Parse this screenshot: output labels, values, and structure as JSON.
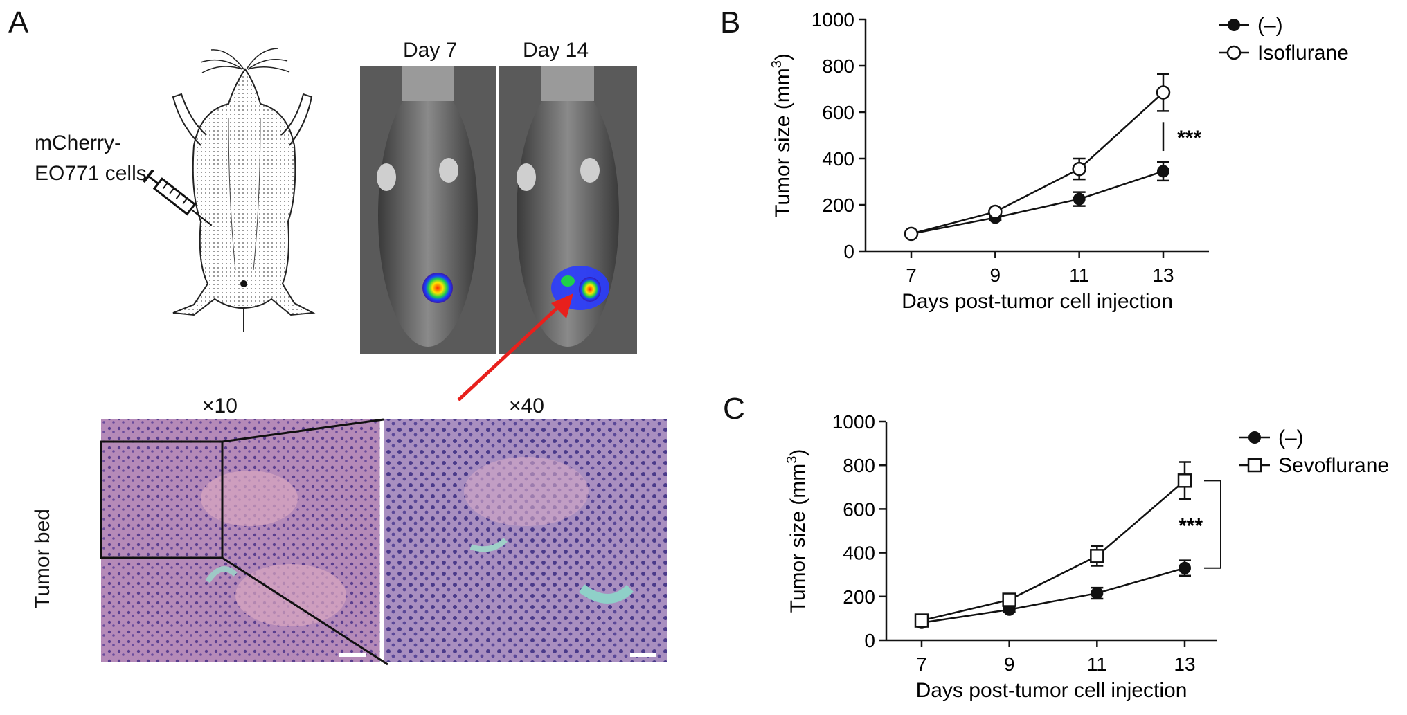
{
  "panel_a": {
    "letter": "A",
    "injection_label_line1": "mCherry-",
    "injection_label_line2": "EO771 cells",
    "imaging": {
      "day_left": "Day 7",
      "day_right": "Day 14"
    },
    "histology": {
      "mag_left": "×10",
      "mag_right": "×40",
      "side_label": "Tumor bed"
    }
  },
  "chart_data": [
    {
      "letter": "B",
      "type": "line",
      "xlabel": "Days post-tumor cell injection",
      "ylabel": "Tumor size (mm",
      "ylabel_sup": "3",
      "ylabel_close": ")",
      "x": [
        7,
        9,
        11,
        13
      ],
      "xlim": [
        7,
        13
      ],
      "ylim": [
        0,
        1000
      ],
      "yticks": [
        0,
        200,
        400,
        600,
        800,
        1000
      ],
      "grid": false,
      "legend_position": "top-right",
      "significance": "***",
      "series": [
        {
          "name": "(–)",
          "marker": "filled-circle",
          "values": [
            75,
            145,
            225,
            345
          ],
          "errors": [
            0,
            10,
            30,
            40
          ]
        },
        {
          "name": "Isoflurane",
          "marker": "open-circle",
          "values": [
            75,
            170,
            355,
            685
          ],
          "errors": [
            0,
            15,
            45,
            80
          ]
        }
      ]
    },
    {
      "letter": "C",
      "type": "line",
      "xlabel": "Days post-tumor cell injection",
      "ylabel": "Tumor size (mm",
      "ylabel_sup": "3",
      "ylabel_close": ")",
      "x": [
        7,
        9,
        11,
        13
      ],
      "xlim": [
        7,
        13
      ],
      "ylim": [
        0,
        1000
      ],
      "yticks": [
        0,
        200,
        400,
        600,
        800,
        1000
      ],
      "grid": false,
      "legend_position": "top-right",
      "significance": "***",
      "series": [
        {
          "name": "(–)",
          "marker": "filled-circle",
          "values": [
            80,
            140,
            215,
            330
          ],
          "errors": [
            0,
            10,
            25,
            35
          ]
        },
        {
          "name": "Sevoflurane",
          "marker": "open-square",
          "values": [
            90,
            185,
            385,
            730
          ],
          "errors": [
            0,
            15,
            45,
            85
          ]
        }
      ]
    }
  ]
}
